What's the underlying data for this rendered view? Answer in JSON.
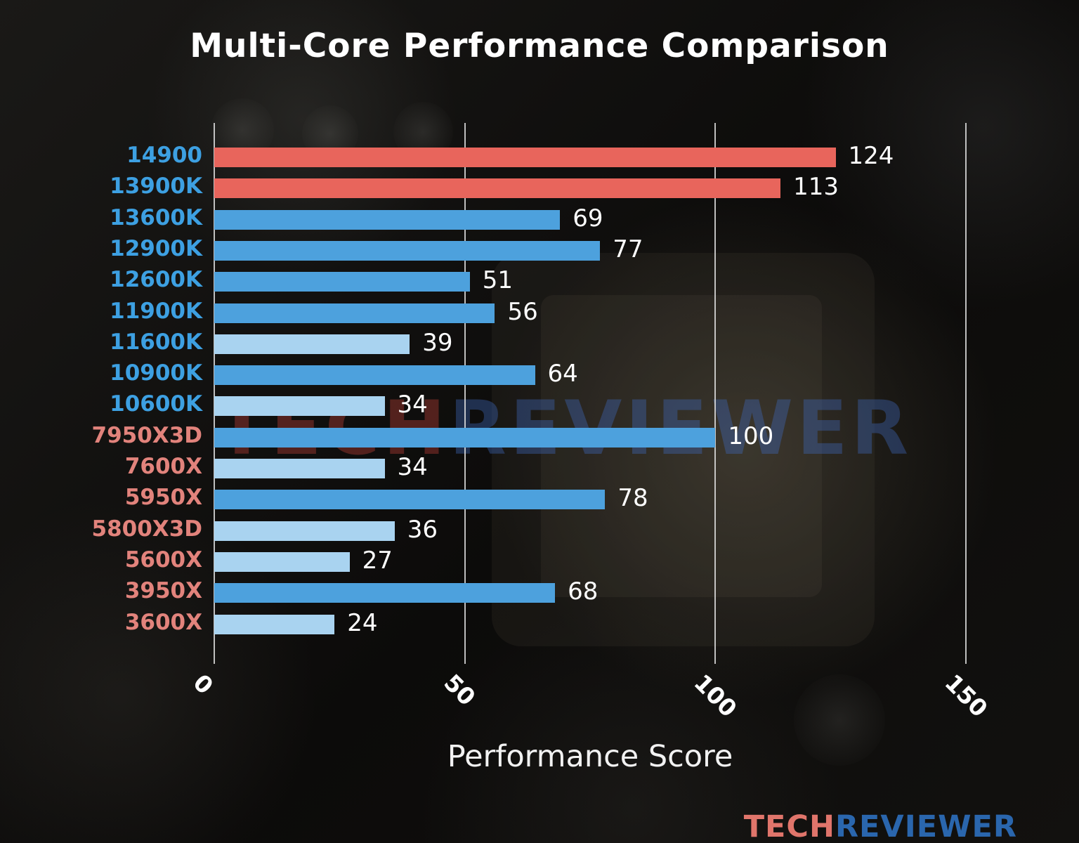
{
  "title": "Multi-Core Performance Comparison",
  "xlabel": "Performance Score",
  "watermark": {
    "tech": "TECH",
    "reviewer": "REVIEWER"
  },
  "logo": {
    "tech": "TECH",
    "reviewer": "REVIEWER"
  },
  "colors": {
    "bar_red": "#e8655c",
    "bar_blue": "#4da1dd",
    "bar_light_blue": "#a9d3f0",
    "label_intel": "#3da0e2",
    "label_amd": "#e2837c",
    "value_text": "#ffffff",
    "grid": "#dedede"
  },
  "chart_data": {
    "type": "bar",
    "orientation": "horizontal",
    "title": "Multi-Core Performance Comparison",
    "xlabel": "Performance Score",
    "xlim": [
      0,
      168
    ],
    "xticks": [
      0,
      50,
      100,
      150
    ],
    "grid": "vertical",
    "legend": "none",
    "categories": [
      "14900",
      "13900K",
      "13600K",
      "12900K",
      "12600K",
      "11900K",
      "11600K",
      "10900K",
      "10600K",
      "7950X3D",
      "7600X",
      "5950X",
      "5800X3D",
      "5600X",
      "3950X",
      "3600X"
    ],
    "values": [
      124,
      113,
      69,
      77,
      51,
      56,
      39,
      64,
      34,
      100,
      34,
      78,
      36,
      27,
      68,
      24
    ],
    "bars": [
      {
        "label": "14900",
        "value": 124,
        "bar_color": "bar_red",
        "label_color": "label_intel"
      },
      {
        "label": "13900K",
        "value": 113,
        "bar_color": "bar_red",
        "label_color": "label_intel"
      },
      {
        "label": "13600K",
        "value": 69,
        "bar_color": "bar_blue",
        "label_color": "label_intel"
      },
      {
        "label": "12900K",
        "value": 77,
        "bar_color": "bar_blue",
        "label_color": "label_intel"
      },
      {
        "label": "12600K",
        "value": 51,
        "bar_color": "bar_blue",
        "label_color": "label_intel"
      },
      {
        "label": "11900K",
        "value": 56,
        "bar_color": "bar_blue",
        "label_color": "label_intel"
      },
      {
        "label": "11600K",
        "value": 39,
        "bar_color": "bar_light_blue",
        "label_color": "label_intel"
      },
      {
        "label": "10900K",
        "value": 64,
        "bar_color": "bar_blue",
        "label_color": "label_intel"
      },
      {
        "label": "10600K",
        "value": 34,
        "bar_color": "bar_light_blue",
        "label_color": "label_intel"
      },
      {
        "label": "7950X3D",
        "value": 100,
        "bar_color": "bar_blue",
        "label_color": "label_amd"
      },
      {
        "label": "7600X",
        "value": 34,
        "bar_color": "bar_light_blue",
        "label_color": "label_amd"
      },
      {
        "label": "5950X",
        "value": 78,
        "bar_color": "bar_blue",
        "label_color": "label_amd"
      },
      {
        "label": "5800X3D",
        "value": 36,
        "bar_color": "bar_light_blue",
        "label_color": "label_amd"
      },
      {
        "label": "5600X",
        "value": 27,
        "bar_color": "bar_light_blue",
        "label_color": "label_amd"
      },
      {
        "label": "3950X",
        "value": 68,
        "bar_color": "bar_blue",
        "label_color": "label_amd"
      },
      {
        "label": "3600X",
        "value": 24,
        "bar_color": "bar_light_blue",
        "label_color": "label_amd"
      }
    ]
  }
}
